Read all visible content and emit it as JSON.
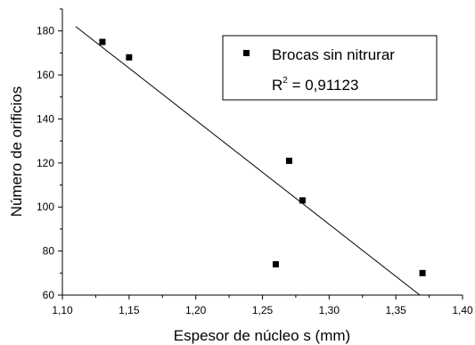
{
  "chart_data": {
    "type": "scatter",
    "title": "",
    "xlabel": "Espesor de núcleo s (mm)",
    "ylabel": "Número de orificios",
    "xlim": [
      1.1,
      1.4
    ],
    "ylim": [
      60,
      190
    ],
    "x_ticks": [
      1.1,
      1.15,
      1.2,
      1.25,
      1.3,
      1.35,
      1.4
    ],
    "x_tick_labels": [
      "1,10",
      "1,15",
      "1,20",
      "1,25",
      "1,30",
      "1,35",
      "1,40"
    ],
    "y_ticks": [
      60,
      80,
      100,
      120,
      140,
      160,
      180
    ],
    "y_tick_labels": [
      "60",
      "80",
      "100",
      "120",
      "140",
      "160",
      "180"
    ],
    "grid": false,
    "legend_position": "top-right",
    "series": [
      {
        "name": "Brocas sin nitrurar",
        "marker": "square",
        "color": "#000000",
        "points": [
          {
            "x": 1.13,
            "y": 175
          },
          {
            "x": 1.15,
            "y": 168
          },
          {
            "x": 1.26,
            "y": 74
          },
          {
            "x": 1.27,
            "y": 121
          },
          {
            "x": 1.28,
            "y": 103
          },
          {
            "x": 1.37,
            "y": 70
          }
        ]
      }
    ],
    "fit_line": {
      "type": "linear",
      "points": [
        {
          "x": 1.11,
          "y": 182
        },
        {
          "x": 1.368,
          "y": 60
        }
      ]
    },
    "annotation": {
      "r2_prefix": "R",
      "r2_sup": "2",
      "r2_value": " = 0,91123"
    }
  }
}
